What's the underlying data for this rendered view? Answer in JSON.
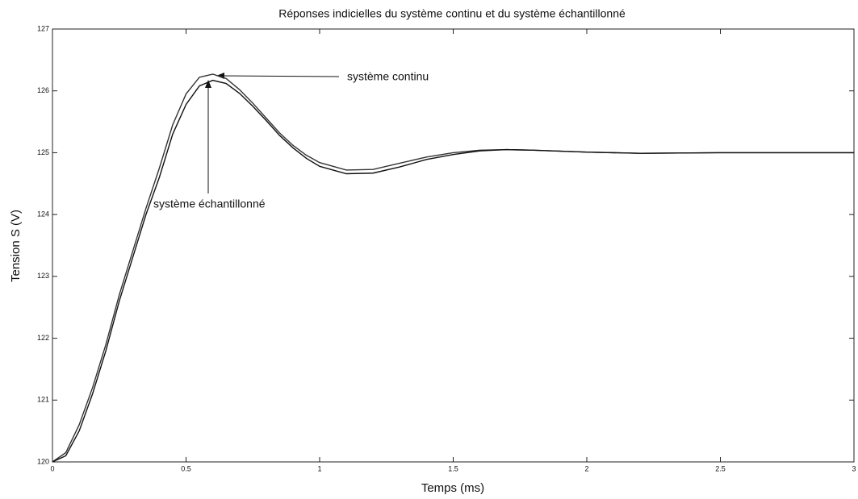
{
  "chart_data": {
    "type": "line",
    "title": "Réponses indicielles du système continu et du système échantillonné",
    "x_label": "Temps (ms)",
    "y_label": "Tension S (V)",
    "x": [
      0,
      0.05,
      0.1,
      0.15,
      0.2,
      0.25,
      0.3,
      0.35,
      0.4,
      0.45,
      0.5,
      0.55,
      0.6,
      0.65,
      0.7,
      0.75,
      0.8,
      0.85,
      0.9,
      0.95,
      1.0,
      1.1,
      1.2,
      1.3,
      1.4,
      1.5,
      1.6,
      1.7,
      1.8,
      2.0,
      2.2,
      2.5,
      3.0
    ],
    "series": [
      {
        "name": "système continu",
        "color": "#333333",
        "values": [
          120,
          120.15,
          120.6,
          121.2,
          121.9,
          122.7,
          123.4,
          124.1,
          124.75,
          125.45,
          125.95,
          126.22,
          126.27,
          126.2,
          126.02,
          125.8,
          125.56,
          125.32,
          125.12,
          124.96,
          124.84,
          124.72,
          124.73,
          124.83,
          124.93,
          125.0,
          125.04,
          125.05,
          125.04,
          125.01,
          124.99,
          125.0,
          125.0
        ]
      },
      {
        "name": "système échantillonné",
        "color": "#111111",
        "values": [
          120,
          120.1,
          120.5,
          121.1,
          121.8,
          122.6,
          123.3,
          124.0,
          124.6,
          125.3,
          125.78,
          126.08,
          126.17,
          126.12,
          125.96,
          125.75,
          125.52,
          125.28,
          125.08,
          124.91,
          124.78,
          124.66,
          124.67,
          124.77,
          124.89,
          124.97,
          125.03,
          125.05,
          125.04,
          125.01,
          124.99,
          125.0,
          125.0
        ]
      }
    ],
    "xlim": [
      0,
      3
    ],
    "ylim": [
      120,
      127
    ],
    "xticks": [
      0,
      0.5,
      1,
      1.5,
      2,
      2.5,
      3
    ],
    "yticks": [
      120,
      121,
      122,
      123,
      124,
      125,
      126,
      127
    ],
    "grid": false
  }
}
